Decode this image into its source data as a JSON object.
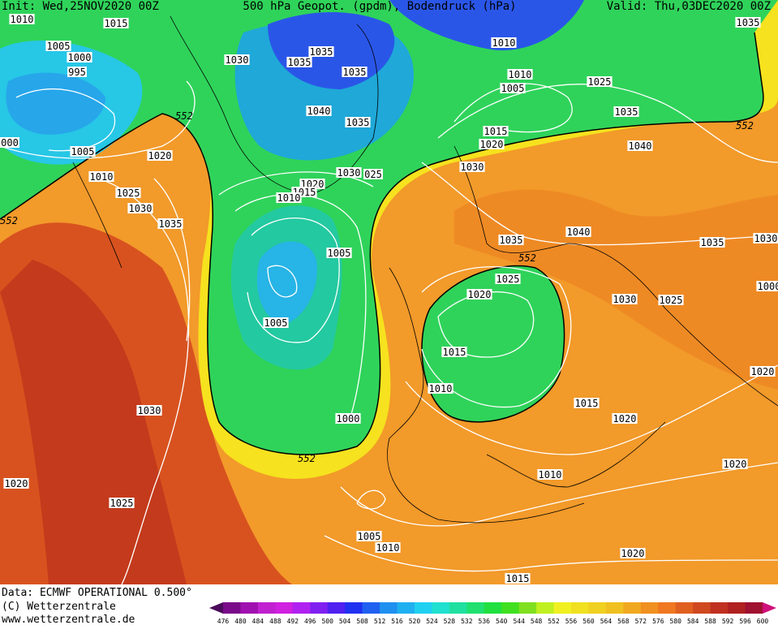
{
  "header": {
    "init": "Init: Wed,25NOV2020 00Z",
    "title": "500 hPa Geopot. (gpdm), Bodendruck (hPa)",
    "valid": "Valid: Thu,03DEC2020 00Z"
  },
  "map": {
    "pressure_labels": [
      "1010",
      "1015",
      "1005",
      "1000",
      "995",
      "000",
      "1005",
      "1020",
      "1010",
      "1025",
      "1030",
      "1035",
      "1030",
      "1035",
      "1035",
      "1035",
      "1040",
      "1035",
      "1030",
      "025",
      "1020",
      "1015",
      "1010",
      "1005",
      "1005",
      "1000",
      "1010",
      "1010",
      "1005",
      "1025",
      "1035",
      "1015",
      "1020",
      "1040",
      "1030",
      "1035",
      "1040",
      "1035",
      "1030",
      "1025",
      "1020",
      "1030",
      "1025",
      "1015",
      "1010",
      "1015",
      "1020",
      "1020",
      "1030",
      "1020",
      "1025",
      "1010",
      "1020",
      "1005",
      "1010",
      "1020",
      "1015",
      "1035",
      "1000"
    ],
    "geopotential_labels": [
      "552",
      "552",
      "552",
      "552",
      "552"
    ]
  },
  "footer": {
    "source": "Data: ECMWF OPERATIONAL 0.500°",
    "copyright": "(C) Wetterzentrale",
    "website": "www.wetterzentrale.de"
  },
  "colorbar": {
    "labels": [
      476,
      480,
      484,
      488,
      492,
      496,
      500,
      504,
      508,
      512,
      516,
      520,
      524,
      528,
      532,
      536,
      540,
      544,
      548,
      552,
      556,
      560,
      564,
      568,
      572,
      576,
      580,
      584,
      588,
      592,
      596,
      600
    ]
  }
}
